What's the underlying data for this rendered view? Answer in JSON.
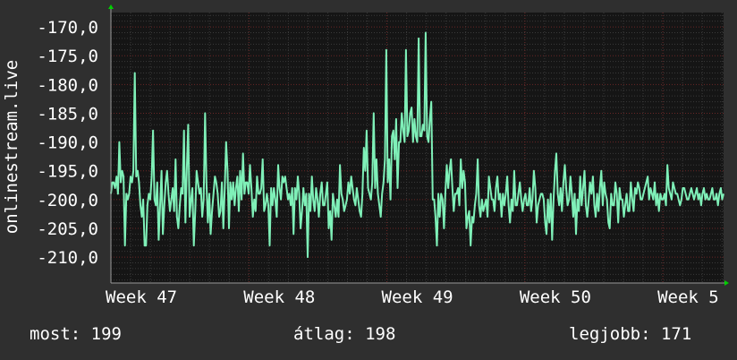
{
  "colors": {
    "background": "#2f2f2f",
    "plot_background": "#151515",
    "grid_major": "#6a2626",
    "grid_minor": "#3a3a3a",
    "line": "#7ff0b8",
    "axis_arrow": "#00d000"
  },
  "stats": {
    "now_label": "most:",
    "now_value": "199",
    "avg_label": "átlag:",
    "avg_value": "198",
    "best_label": "legjobb:",
    "best_value": "171"
  },
  "chart_data": {
    "type": "line",
    "title": "",
    "ylabel": "onlinestream.live",
    "xlabel": "",
    "ylim": [
      -214.5,
      -167.5
    ],
    "xlim": [
      0,
      4.44
    ],
    "grid": true,
    "y_ticks": [
      -170,
      -175,
      -180,
      -185,
      -190,
      -195,
      -200,
      -205,
      -210
    ],
    "y_tick_labels": [
      "-170,0",
      "-175,0",
      "-180,0",
      "-185,0",
      "-190,0",
      "-195,0",
      "-200,0",
      "-205,0",
      "-210,0"
    ],
    "x_ticks": [
      0,
      1,
      2,
      3,
      4
    ],
    "x_tick_labels": [
      "Week 47",
      "Week 48",
      "Week 49",
      "Week 50",
      "Week 5"
    ],
    "series": [
      {
        "values": [
          -199,
          -197,
          -197,
          -198,
          -196,
          -199,
          -190,
          -197,
          -195,
          -196,
          -208,
          -199,
          -200,
          -199,
          -196,
          -197,
          -195,
          -178,
          -196,
          -195,
          -197,
          -201,
          -203,
          -200,
          -208,
          -208,
          -201,
          -199,
          -200,
          -196,
          -188,
          -200,
          -201,
          -197,
          -207,
          -201,
          -195,
          -206,
          -201,
          -197,
          -195,
          -199,
          -202,
          -200,
          -198,
          -202,
          -193,
          -203,
          -205,
          -201,
          -198,
          -199,
          -188,
          -204,
          -195,
          -187,
          -203,
          -200,
          -198,
          -208,
          -202,
          -195,
          -197,
          -199,
          -198,
          -203,
          -200,
          -185,
          -197,
          -204,
          -199,
          -206,
          -202,
          -199,
          -196,
          -197,
          -199,
          -203,
          -202,
          -197,
          -205,
          -198,
          -190,
          -195,
          -205,
          -197,
          -200,
          -197,
          -201,
          -198,
          -196,
          -202,
          -195,
          -200,
          -192,
          -199,
          -197,
          -197,
          -199,
          -194,
          -198,
          -203,
          -200,
          -202,
          -196,
          -199,
          -199,
          -198,
          -193,
          -202,
          -201,
          -199,
          -201,
          -208,
          -198,
          -201,
          -198,
          -200,
          -203,
          -194,
          -198,
          -200,
          -196,
          -197,
          -196,
          -198,
          -200,
          -199,
          -201,
          -198,
          -206,
          -198,
          -200,
          -196,
          -199,
          -205,
          -202,
          -198,
          -201,
          -199,
          -210,
          -199,
          -202,
          -196,
          -200,
          -202,
          -198,
          -200,
          -203,
          -199,
          -197,
          -201,
          -201,
          -199,
          -197,
          -205,
          -202,
          -207,
          -199,
          -201,
          -203,
          -200,
          -203,
          -194,
          -199,
          -200,
          -202,
          -201,
          -200,
          -197,
          -199,
          -196,
          -198,
          -200,
          -201,
          -198,
          -200,
          -202,
          -203,
          -199,
          -191,
          -195,
          -188,
          -198,
          -199,
          -200,
          -197,
          -185,
          -198,
          -193,
          -199,
          -201,
          -203,
          -199,
          -197,
          -193,
          -174,
          -197,
          -193,
          -200,
          -189,
          -188,
          -193,
          -186,
          -198,
          -190,
          -190,
          -185,
          -188,
          -190,
          -174,
          -189,
          -188,
          -185,
          -184,
          -190,
          -186,
          -189,
          -190,
          -172,
          -189,
          -189,
          -187,
          -188,
          -171,
          -189,
          -190,
          -186,
          -183,
          -200,
          -200,
          -203,
          -208,
          -199,
          -203,
          -199,
          -200,
          -205,
          -199,
          -194,
          -198,
          -195,
          -193,
          -198,
          -202,
          -199,
          -199,
          -198,
          -201,
          -193,
          -198,
          -195,
          -197,
          -205,
          -203,
          -202,
          -208,
          -203,
          -204,
          -201,
          -199,
          -193,
          -201,
          -203,
          -200,
          -202,
          -201,
          -200,
          -203,
          -196,
          -198,
          -200,
          -200,
          -202,
          -198,
          -196,
          -200,
          -199,
          -203,
          -199,
          -201,
          -199,
          -196,
          -201,
          -204,
          -200,
          -202,
          -195,
          -201,
          -201,
          -199,
          -197,
          -200,
          -202,
          -200,
          -199,
          -201,
          -201,
          -198,
          -202,
          -200,
          -195,
          -198,
          -204,
          -201,
          -200,
          -199,
          -199,
          -200,
          -204,
          -206,
          -200,
          -204,
          -199,
          -207,
          -200,
          -195,
          -192,
          -199,
          -201,
          -198,
          -202,
          -197,
          -194,
          -198,
          -201,
          -200,
          -196,
          -199,
          -203,
          -199,
          -206,
          -200,
          -202,
          -196,
          -201,
          -198,
          -195,
          -201,
          -203,
          -200,
          -197,
          -199,
          -196,
          -201,
          -203,
          -199,
          -202,
          -198,
          -195,
          -201,
          -197,
          -199,
          -200,
          -204,
          -205,
          -199,
          -201,
          -201,
          -197,
          -199,
          -204,
          -198,
          -200,
          -200,
          -203,
          -201,
          -199,
          -202,
          -202,
          -197,
          -200,
          -202,
          -198,
          -199,
          -197,
          -198,
          -200,
          -200,
          -199,
          -198,
          -197,
          -196,
          -200,
          -198,
          -199,
          -200,
          -197,
          -201,
          -199,
          -202,
          -199,
          -200,
          -200,
          -199,
          -201,
          -194,
          -198,
          -199,
          -200,
          -197,
          -198,
          -199,
          -199,
          -200,
          -201,
          -200,
          -198,
          -198,
          -199,
          -200,
          -200,
          -199,
          -198,
          -199,
          -200,
          -199,
          -198,
          -200,
          -199,
          -201,
          -199,
          -198,
          -200,
          -199,
          -200,
          -200,
          -199,
          -198,
          -200,
          -200,
          -199,
          -201,
          -199,
          -198,
          -200,
          -199
        ],
        "x_start": 0,
        "x_end": 4.44
      }
    ]
  }
}
